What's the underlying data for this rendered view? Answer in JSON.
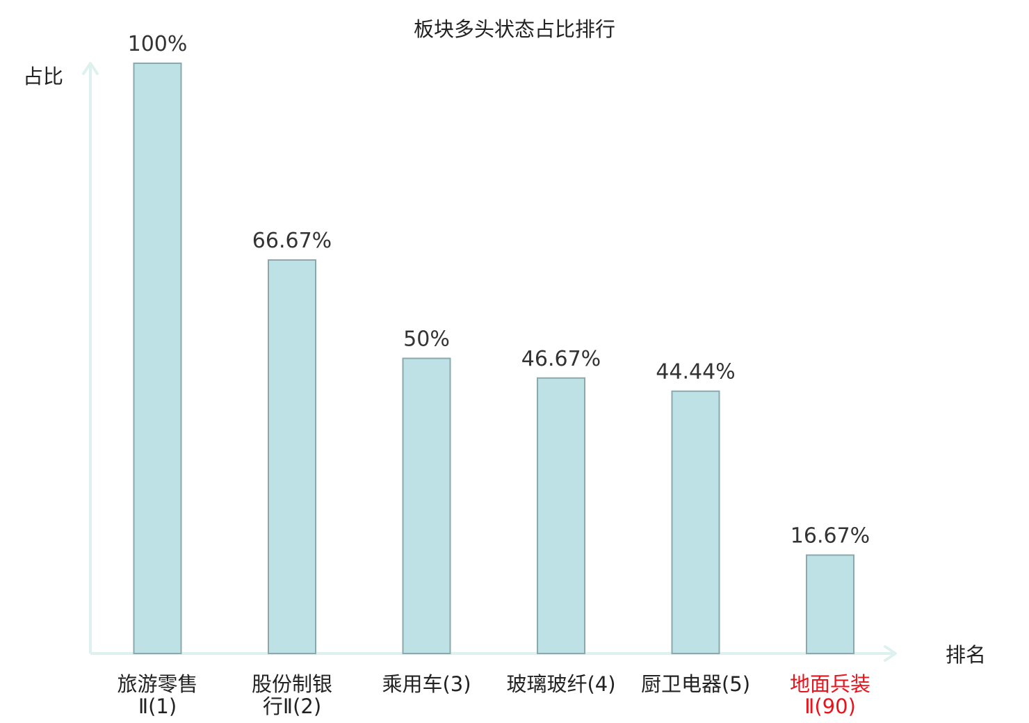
{
  "chart_data": {
    "type": "bar",
    "title": "板块多头状态占比排行",
    "ylabel": "占比",
    "xlabel": "排名",
    "ylim": [
      0,
      100
    ],
    "grid": false,
    "categories": [
      {
        "lines": [
          "旅游零售",
          "Ⅱ(1)"
        ],
        "highlight": false
      },
      {
        "lines": [
          "股份制银",
          "行Ⅱ(2)"
        ],
        "highlight": false
      },
      {
        "lines": [
          "乘用车(3)"
        ],
        "highlight": false
      },
      {
        "lines": [
          "玻璃玻纤(4)"
        ],
        "highlight": false
      },
      {
        "lines": [
          "厨卫电器(5)"
        ],
        "highlight": false
      },
      {
        "lines": [
          "地面兵装",
          "Ⅱ(90)"
        ],
        "highlight": true
      }
    ],
    "values": [
      100,
      66.67,
      50,
      46.67,
      44.44,
      16.67
    ],
    "value_labels": [
      "100%",
      "66.67%",
      "50%",
      "46.67%",
      "44.44%",
      "16.67%"
    ],
    "colors": {
      "bar_fill": "#bde1e4",
      "bar_stroke": "#8aa9ad",
      "axis": "#dff1ef",
      "category_text": "#222222",
      "highlight_text": "#e8141c"
    }
  }
}
